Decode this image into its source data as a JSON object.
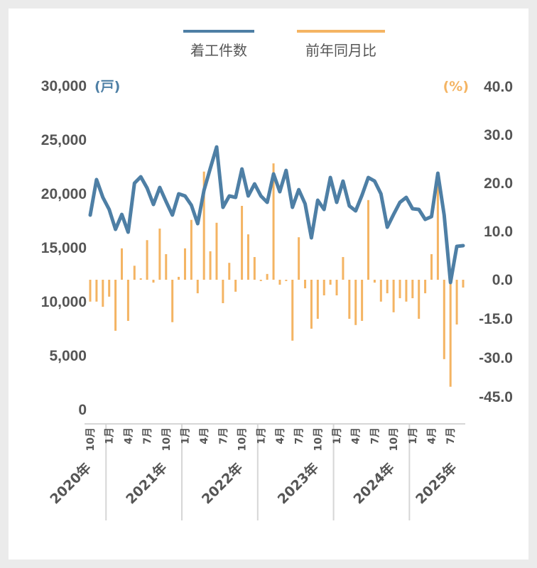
{
  "chart_data": {
    "type": "bar+line",
    "colors": {
      "line": "#4e7fa5",
      "bar": "#f4b463",
      "negative_tick": "#e02424",
      "axis_text": "#555555"
    },
    "legend": {
      "placement": "top",
      "entries": [
        {
          "name": "着工件数",
          "type": "line",
          "color": "#4e7fa5"
        },
        {
          "name": "前年同月比",
          "type": "bar",
          "color": "#f4b463"
        }
      ]
    },
    "left_axis": {
      "unit": "(戸)",
      "range": [
        0,
        30000
      ],
      "ticks": [
        0,
        5000,
        10000,
        15000,
        20000,
        25000,
        30000
      ],
      "tick_labels": [
        "0",
        "5,000",
        "10,000",
        "15,000",
        "20,000",
        "25,000",
        "30,000"
      ]
    },
    "right_axis": {
      "unit": "(%)",
      "ticks": [
        40,
        30,
        20,
        10,
        0,
        -15,
        -30,
        -45
      ],
      "tick_labels": [
        "40.0",
        "30.0",
        "20.0",
        "10.0",
        "0.0",
        "-15.0",
        "-30.0",
        "-45.0"
      ],
      "note_scale": "positive and negative sides use different scales"
    },
    "x_axis": {
      "start": "2020-10",
      "month_labels": [
        {
          "year": 2020,
          "months": [
            "10月"
          ]
        },
        {
          "year": 2021,
          "months": [
            "1月",
            "4月",
            "7月",
            "10月"
          ]
        },
        {
          "year": 2022,
          "months": [
            "1月",
            "4月",
            "7月",
            "10月"
          ]
        },
        {
          "year": 2023,
          "months": [
            "1月",
            "4月",
            "7月",
            "10月"
          ]
        },
        {
          "year": 2024,
          "months": [
            "1月",
            "4月",
            "7月",
            "10月"
          ]
        },
        {
          "year": 2025,
          "months": [
            "1月",
            "4月",
            "7月"
          ]
        }
      ],
      "year_labels": [
        "2020年",
        "2021年",
        "2022年",
        "2023年",
        "2024年",
        "2025年"
      ]
    },
    "series": [
      {
        "name": "着工件数",
        "type": "line",
        "axis": "left",
        "values": [
          18030,
          21320,
          19670,
          18550,
          16710,
          18090,
          16450,
          20990,
          21580,
          20530,
          19010,
          20590,
          19280,
          18030,
          20000,
          19800,
          18950,
          17240,
          20330,
          22370,
          24340,
          18750,
          19800,
          19670,
          22300,
          19800,
          20920,
          19800,
          19210,
          21840,
          20200,
          22170,
          18750,
          20390,
          19080,
          15920,
          19410,
          18550,
          21510,
          19210,
          21180,
          18880,
          18420,
          19870,
          21510,
          21180,
          20000,
          16910,
          18090,
          19210,
          19670,
          18620,
          18550,
          17630,
          17890,
          21910,
          18030,
          11780,
          15130,
          15200
        ]
      },
      {
        "name": "前年同月比",
        "type": "bar",
        "axis": "right",
        "values": [
          -8.4,
          -8.4,
          -10.4,
          -6.5,
          -19.6,
          6.5,
          -15.8,
          2.9,
          0.3,
          8.2,
          -1.1,
          10.6,
          5.3,
          -16.3,
          0.6,
          6.5,
          12.4,
          -5.2,
          22.4,
          5.9,
          11.8,
          -9.0,
          3.5,
          -4.6,
          15.3,
          9.4,
          4.7,
          -0.5,
          1.2,
          24.1,
          -1.9,
          -0.5,
          -23.4,
          8.8,
          -3.3,
          -18.8,
          -15.0,
          -6.0,
          -1.9,
          -6.0,
          4.7,
          -15.0,
          -17.4,
          -15.8,
          16.5,
          -1.1,
          -8.4,
          -5.2,
          -12.5,
          -7.1,
          -8.4,
          -7.1,
          -15.0,
          -5.2,
          5.3,
          19.4,
          -30.5,
          -41.1,
          -17.2,
          -3.0
        ]
      }
    ]
  }
}
